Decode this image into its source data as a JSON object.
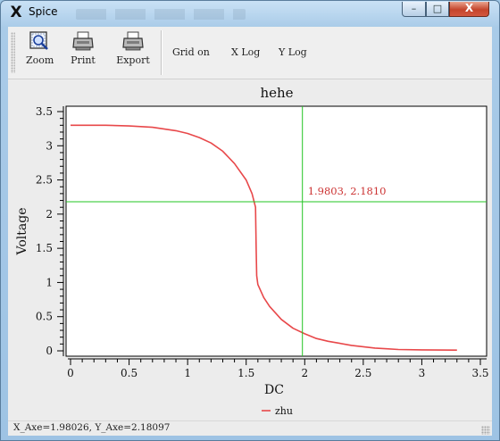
{
  "window": {
    "title": "Spice",
    "app_icon": "x-logo-icon",
    "controls": {
      "minimize": "–",
      "maximize": "□",
      "close": "X"
    }
  },
  "toolbar": {
    "zoom_label": "Zoom",
    "print_label": "Print",
    "export_label": "Export",
    "grid_label": "Grid on",
    "xlog_label": "X Log",
    "ylog_label": "Y Log"
  },
  "status": {
    "coordinates": "X_Axe=1.98026, Y_Axe=2.18097"
  },
  "colors": {
    "curve": "#e8484a",
    "crosshair": "#22c422",
    "annotation": "#cc3333",
    "axis": "#000000"
  },
  "chart_data": {
    "type": "line",
    "title": "hehe",
    "xlabel": "DC",
    "ylabel": "Voltage",
    "xlim": [
      0,
      3.5
    ],
    "ylim": [
      0,
      3.5
    ],
    "xticks": [
      "0",
      "0.5",
      "1",
      "1.5",
      "2",
      "2.5",
      "3",
      "3.5"
    ],
    "yticks": [
      "0",
      "0.5",
      "1",
      "1.5",
      "2",
      "2.5",
      "3",
      "3.5"
    ],
    "grid": false,
    "legend_position": "bottom-center",
    "crosshair": {
      "x": 1.9803,
      "y": 2.181,
      "label": "1.9803, 2.1810"
    },
    "series": [
      {
        "name": "zhu",
        "points": [
          [
            0,
            3.3
          ],
          [
            0.3,
            3.3
          ],
          [
            0.5,
            3.29
          ],
          [
            0.7,
            3.27
          ],
          [
            0.9,
            3.22
          ],
          [
            1.0,
            3.18
          ],
          [
            1.1,
            3.12
          ],
          [
            1.2,
            3.04
          ],
          [
            1.3,
            2.92
          ],
          [
            1.4,
            2.74
          ],
          [
            1.5,
            2.5
          ],
          [
            1.55,
            2.3
          ],
          [
            1.58,
            2.1
          ],
          [
            1.585,
            1.5
          ],
          [
            1.59,
            1.1
          ],
          [
            1.6,
            0.97
          ],
          [
            1.65,
            0.78
          ],
          [
            1.7,
            0.65
          ],
          [
            1.8,
            0.46
          ],
          [
            1.9,
            0.33
          ],
          [
            2.0,
            0.25
          ],
          [
            2.1,
            0.18
          ],
          [
            2.2,
            0.14
          ],
          [
            2.3,
            0.11
          ],
          [
            2.4,
            0.08
          ],
          [
            2.5,
            0.06
          ],
          [
            2.6,
            0.04
          ],
          [
            2.7,
            0.03
          ],
          [
            2.8,
            0.02
          ],
          [
            3.0,
            0.015
          ],
          [
            3.3,
            0.01
          ]
        ]
      }
    ]
  }
}
